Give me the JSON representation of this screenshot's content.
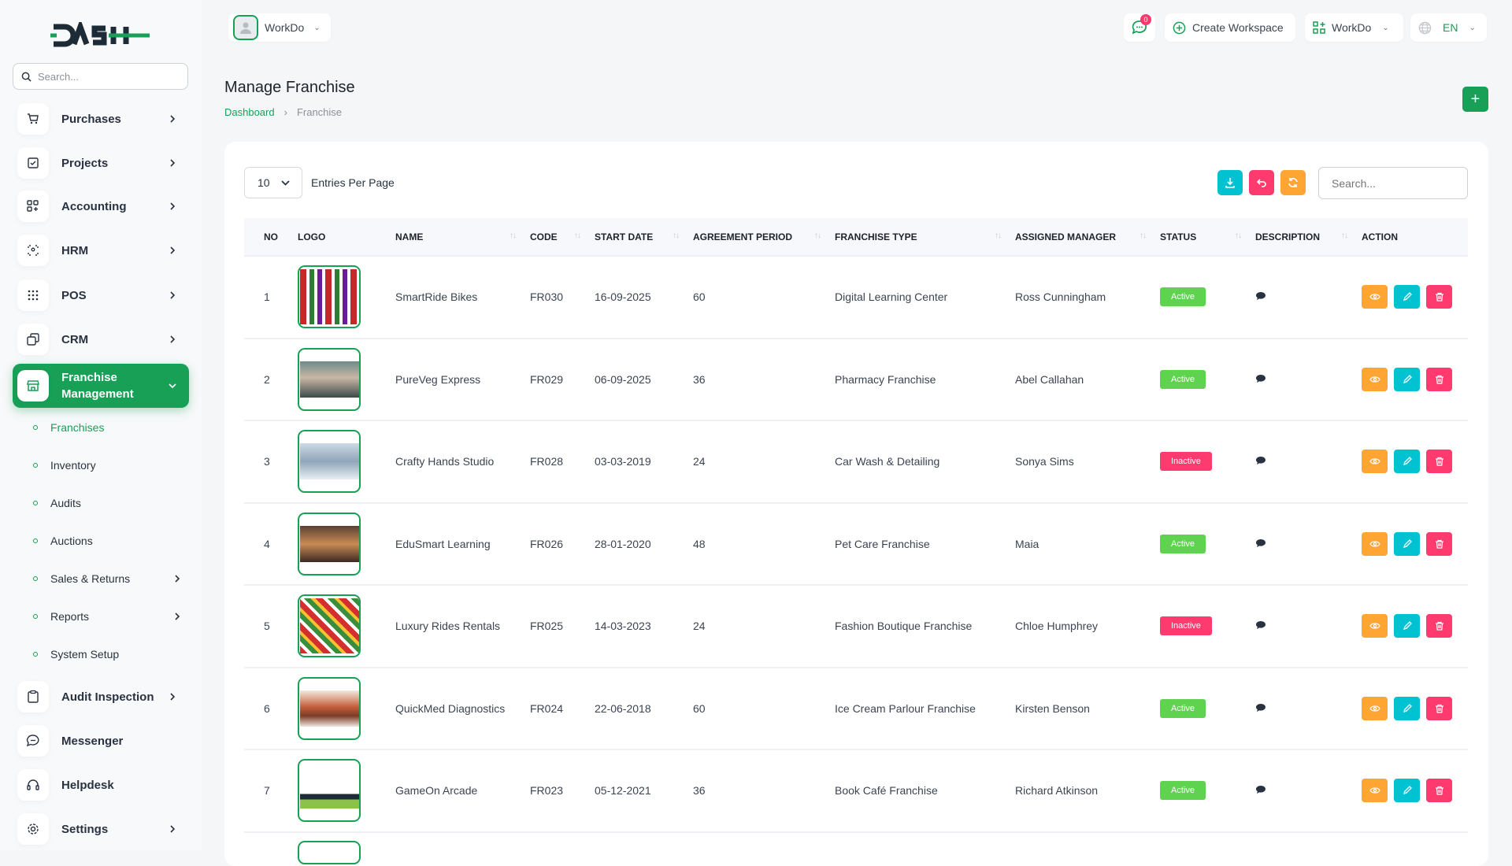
{
  "brand": {
    "logo_text": "DASH",
    "accent": "#18a057"
  },
  "sidebar": {
    "search_placeholder": "Search...",
    "items": [
      {
        "label": "Purchases",
        "icon": "cart-icon"
      },
      {
        "label": "Projects",
        "icon": "checkbox-icon"
      },
      {
        "label": "Accounting",
        "icon": "grid-plus-icon"
      },
      {
        "label": "HRM",
        "icon": "user-focus-icon"
      },
      {
        "label": "POS",
        "icon": "dots-grid-icon"
      },
      {
        "label": "CRM",
        "icon": "layers-icon"
      },
      {
        "label": "Franchise Management",
        "icon": "store-icon"
      }
    ],
    "sub_items": [
      {
        "label": "Franchises"
      },
      {
        "label": "Inventory"
      },
      {
        "label": "Audits"
      },
      {
        "label": "Auctions"
      },
      {
        "label": "Sales & Returns"
      },
      {
        "label": "Reports"
      },
      {
        "label": "System Setup"
      }
    ],
    "bottom_items": [
      {
        "label": "Audit Inspection",
        "icon": "clipboard-icon"
      },
      {
        "label": "Messenger",
        "icon": "message-icon"
      },
      {
        "label": "Helpdesk",
        "icon": "headset-icon"
      },
      {
        "label": "Settings",
        "icon": "gear-icon"
      }
    ]
  },
  "header": {
    "workspace": "WorkDo",
    "notification_count": "0",
    "create_workspace": "Create Workspace",
    "workspace_menu": "WorkDo",
    "language": "EN"
  },
  "page": {
    "title": "Manage Franchise",
    "breadcrumb": [
      "Dashboard",
      "Franchise"
    ]
  },
  "table_controls": {
    "entries_value": "10",
    "entries_label": "Entries Per Page",
    "search_placeholder": "Search..."
  },
  "table": {
    "columns": [
      "NO",
      "LOGO",
      "NAME",
      "CODE",
      "START DATE",
      "AGREEMENT PERIOD",
      "FRANCHISE TYPE",
      "ASSIGNED MANAGER",
      "STATUS",
      "DESCRIPTION",
      "ACTION"
    ],
    "rows": [
      {
        "no": "1",
        "name": "SmartRide Bikes",
        "code": "FR030",
        "start": "16-09-2025",
        "period": "60",
        "type": "Digital Learning Center",
        "manager": "Ross Cunningham",
        "status": "Active"
      },
      {
        "no": "2",
        "name": "PureVeg Express",
        "code": "FR029",
        "start": "06-09-2025",
        "period": "36",
        "type": "Pharmacy Franchise",
        "manager": "Abel Callahan",
        "status": "Active"
      },
      {
        "no": "3",
        "name": "Crafty Hands Studio",
        "code": "FR028",
        "start": "03-03-2019",
        "period": "24",
        "type": "Car Wash & Detailing",
        "manager": "Sonya Sims",
        "status": "Inactive"
      },
      {
        "no": "4",
        "name": "EduSmart Learning",
        "code": "FR026",
        "start": "28-01-2020",
        "period": "48",
        "type": "Pet Care Franchise",
        "manager": "Maia",
        "status": "Active"
      },
      {
        "no": "5",
        "name": "Luxury Rides Rentals",
        "code": "FR025",
        "start": "14-03-2023",
        "period": "24",
        "type": "Fashion Boutique Franchise",
        "manager": "Chloe Humphrey",
        "status": "Inactive"
      },
      {
        "no": "6",
        "name": "QuickMed Diagnostics",
        "code": "FR024",
        "start": "22-06-2018",
        "period": "60",
        "type": "Ice Cream Parlour Franchise",
        "manager": "Kirsten Benson",
        "status": "Active"
      },
      {
        "no": "7",
        "name": "GameOn Arcade",
        "code": "FR023",
        "start": "05-12-2021",
        "period": "36",
        "type": "Book Café Franchise",
        "manager": "Richard Atkinson",
        "status": "Active"
      }
    ]
  },
  "colors": {
    "active": "#5fd34f",
    "inactive": "#ff3a6e",
    "view": "#ffa533",
    "edit": "#00c2d1",
    "delete": "#ff3a6e",
    "download": "#00c2d1",
    "undo": "#ff3a6e",
    "refresh": "#ffa533"
  }
}
